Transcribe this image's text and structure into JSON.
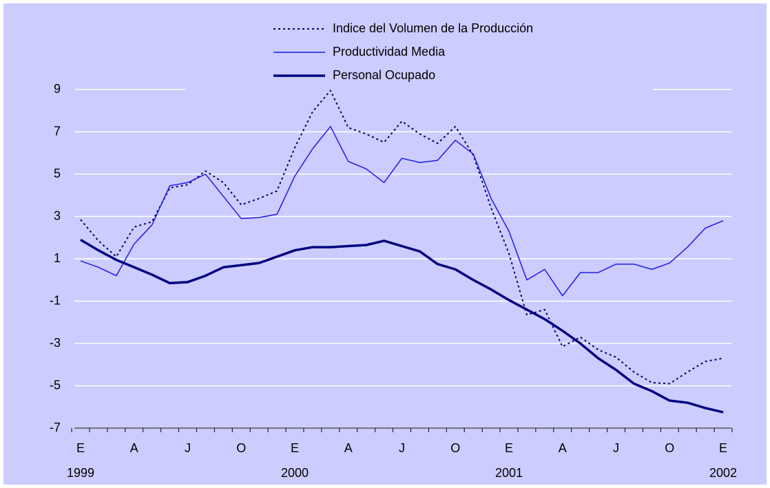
{
  "chart_data": {
    "type": "line",
    "categories": [
      "E",
      null,
      null,
      "A",
      null,
      null,
      "J",
      null,
      null,
      "O",
      null,
      null,
      "E",
      null,
      null,
      "A",
      null,
      null,
      "J",
      null,
      null,
      "O",
      null,
      null,
      "E",
      null,
      null,
      "A",
      null,
      null,
      "J",
      null,
      null,
      "O",
      null,
      null,
      "E"
    ],
    "years": [
      "1999",
      null,
      null,
      null,
      null,
      null,
      null,
      null,
      null,
      null,
      null,
      null,
      "2000",
      null,
      null,
      null,
      null,
      null,
      null,
      null,
      null,
      null,
      null,
      null,
      "2001",
      null,
      null,
      null,
      null,
      null,
      null,
      null,
      null,
      null,
      null,
      null,
      "2002"
    ],
    "ylim": [
      -7,
      9
    ],
    "yticks": [
      9,
      7,
      5,
      3,
      1,
      -1,
      -3,
      -5,
      -7
    ],
    "grid": true,
    "series": [
      {
        "name": "Indice del Volumen de la Producción",
        "color": "#000066",
        "style": "dotted",
        "values": [
          2.85,
          1.85,
          1.1,
          2.5,
          2.75,
          4.35,
          4.5,
          5.15,
          4.6,
          3.55,
          3.85,
          4.2,
          6.25,
          7.95,
          8.95,
          7.2,
          6.9,
          6.5,
          7.5,
          6.9,
          6.45,
          7.25,
          5.9,
          3.4,
          1.25,
          -1.65,
          -1.4,
          -3.15,
          -2.7,
          -3.3,
          -3.65,
          -4.35,
          -4.85,
          -4.9,
          -4.35,
          -3.85,
          -3.7
        ]
      },
      {
        "name": "Productividad Media",
        "color": "#1a1ae6",
        "style": "thin",
        "values": [
          0.9,
          0.6,
          0.2,
          1.7,
          2.6,
          4.45,
          4.6,
          5.0,
          3.95,
          2.9,
          2.95,
          3.1,
          4.9,
          6.2,
          7.25,
          5.6,
          5.25,
          4.6,
          5.75,
          5.55,
          5.65,
          6.6,
          5.95,
          3.85,
          2.3,
          0.0,
          0.5,
          -0.75,
          0.35,
          0.35,
          0.75,
          0.75,
          0.5,
          0.8,
          1.55,
          2.45,
          2.8
        ]
      },
      {
        "name": "Personal Ocupado",
        "color": "#000080",
        "style": "thick",
        "values": [
          1.9,
          1.4,
          0.95,
          0.6,
          0.25,
          -0.15,
          -0.1,
          0.2,
          0.6,
          0.7,
          0.8,
          1.1,
          1.4,
          1.55,
          1.55,
          1.6,
          1.65,
          1.85,
          1.6,
          1.35,
          0.75,
          0.5,
          0.0,
          -0.45,
          -0.95,
          -1.4,
          -1.85,
          -2.4,
          -3.0,
          -3.7,
          -4.25,
          -4.9,
          -5.25,
          -5.7,
          -5.8,
          -6.05,
          -6.25
        ]
      }
    ]
  }
}
